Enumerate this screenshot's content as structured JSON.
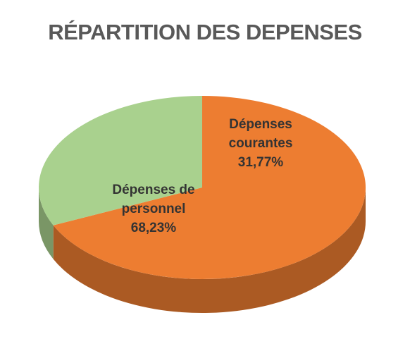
{
  "chart_data": {
    "type": "pie",
    "title": "RÉPARTITION DES DEPENSES",
    "categories": [
      "Dépenses de personnel",
      "Dépenses courantes"
    ],
    "values": [
      68.23,
      31.77
    ],
    "value_labels": [
      "68,23%",
      "31,77%"
    ],
    "colors": [
      "#ED7D31",
      "#A9D18E"
    ]
  }
}
